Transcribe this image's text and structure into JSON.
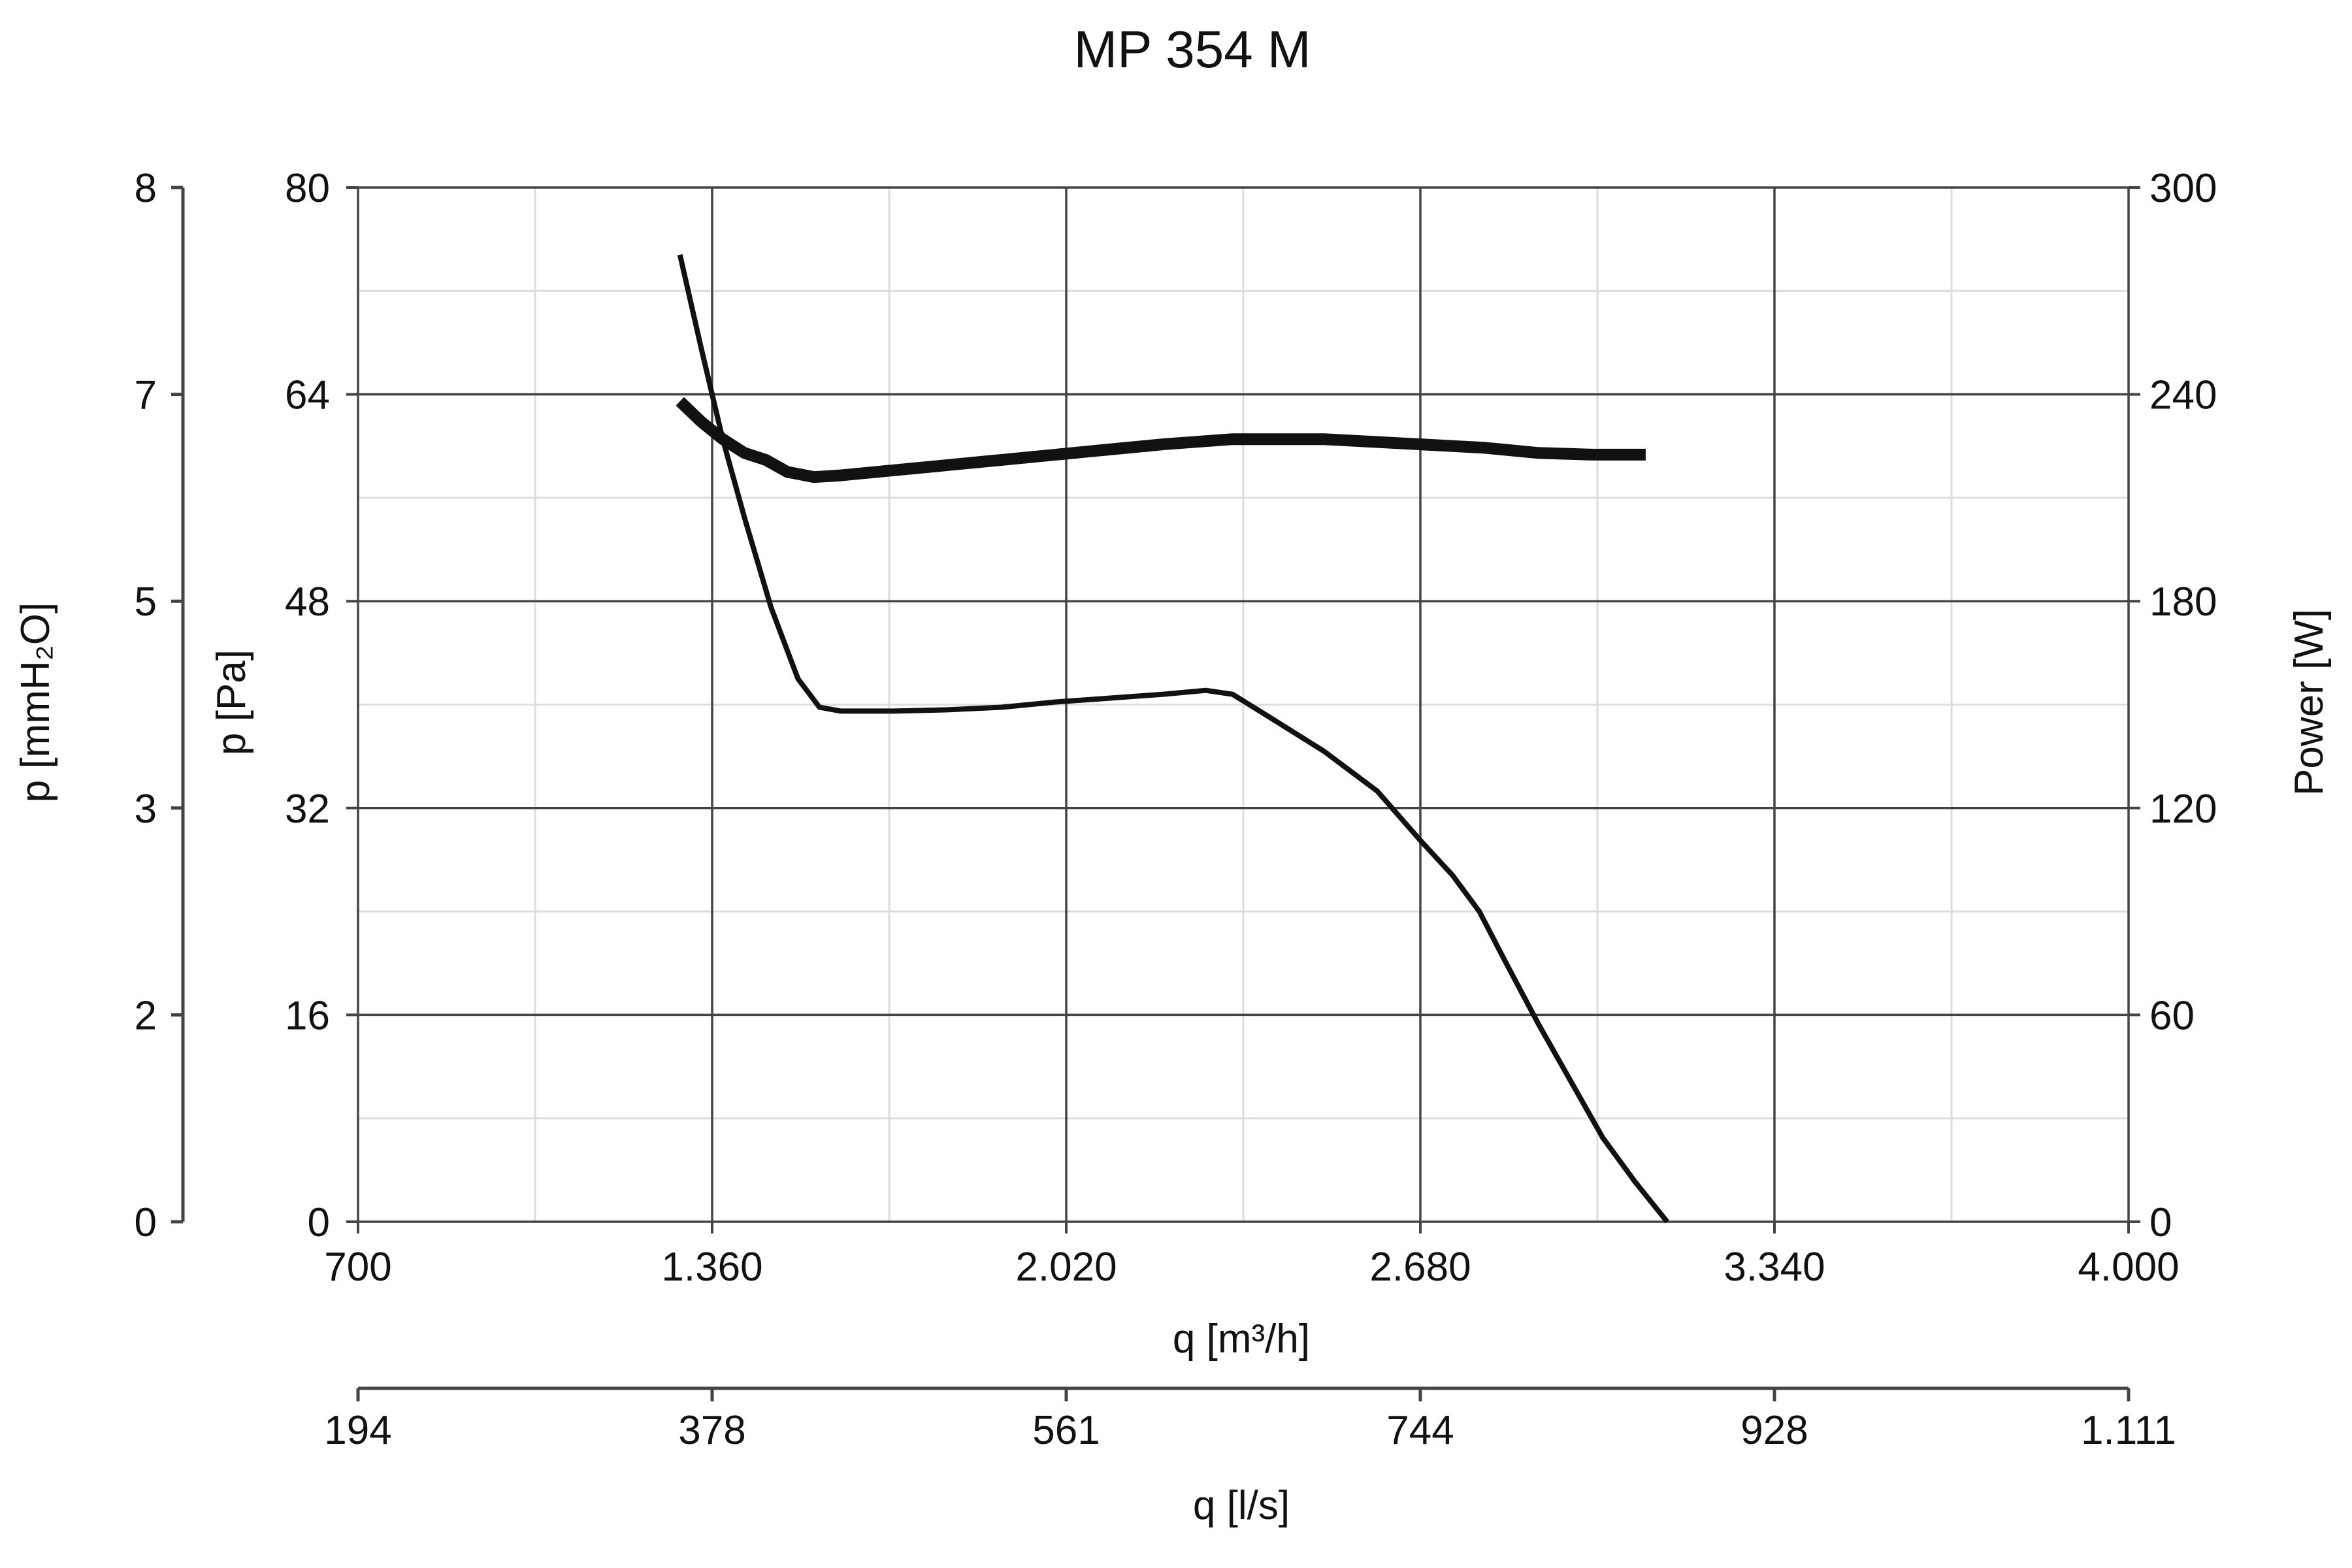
{
  "chart_data": {
    "type": "line",
    "title": "MP 354 M",
    "x_axis": {
      "label": "q [m³/h]",
      "range": [
        700,
        4000
      ],
      "ticks": [
        700,
        1360,
        2020,
        2680,
        3340,
        4000
      ],
      "tick_labels": [
        "700",
        "1.360",
        "2.020",
        "2.680",
        "3.340",
        "4.000"
      ]
    },
    "x2_axis": {
      "label": "q [l/s]",
      "tick_labels": [
        "194",
        "378",
        "561",
        "744",
        "928",
        "1.111"
      ]
    },
    "y_axis": {
      "label": "p [Pa]",
      "range": [
        0,
        80
      ],
      "ticks": [
        0,
        16,
        32,
        48,
        64,
        80
      ],
      "tick_labels": [
        "0",
        "16",
        "32",
        "48",
        "64",
        "80"
      ]
    },
    "y2_axis": {
      "label": "p [mmH₂O]",
      "tick_labels": [
        "0",
        "2",
        "3",
        "5",
        "7",
        "8"
      ]
    },
    "y_right_axis": {
      "label": "Power [W]",
      "range": [
        0,
        300
      ],
      "ticks": [
        0,
        60,
        120,
        180,
        240,
        300
      ],
      "tick_labels": [
        "0",
        "60",
        "120",
        "180",
        "240",
        "300"
      ]
    },
    "grid": true,
    "series": [
      {
        "axis": "left",
        "color": "#111111",
        "values": [
          [
            1300,
            74.8
          ],
          [
            1340,
            67.5
          ],
          [
            1380,
            60.5
          ],
          [
            1420,
            54.5
          ],
          [
            1470,
            47.5
          ],
          [
            1520,
            42
          ],
          [
            1560,
            39.8
          ],
          [
            1600,
            39.5
          ],
          [
            1700,
            39.5
          ],
          [
            1800,
            39.6
          ],
          [
            1900,
            39.8
          ],
          [
            2000,
            40.2
          ],
          [
            2100,
            40.5
          ],
          [
            2200,
            40.8
          ],
          [
            2280,
            41.1
          ],
          [
            2330,
            40.8
          ],
          [
            2400,
            39
          ],
          [
            2500,
            36.4
          ],
          [
            2600,
            33.3
          ],
          [
            2680,
            29.5
          ],
          [
            2740,
            26.8
          ],
          [
            2790,
            24
          ],
          [
            2840,
            20
          ],
          [
            2900,
            15.3
          ],
          [
            2960,
            10.9
          ],
          [
            3020,
            6.5
          ],
          [
            3080,
            3.1
          ],
          [
            3140,
            0
          ]
        ]
      },
      {
        "axis": "right",
        "color": "#111111",
        "values": [
          [
            1300,
            238
          ],
          [
            1340,
            232
          ],
          [
            1380,
            227
          ],
          [
            1420,
            223
          ],
          [
            1460,
            221
          ],
          [
            1500,
            217.5
          ],
          [
            1550,
            216
          ],
          [
            1600,
            216.5
          ],
          [
            1700,
            218
          ],
          [
            1800,
            219.5
          ],
          [
            1900,
            221
          ],
          [
            2000,
            222.5
          ],
          [
            2100,
            224
          ],
          [
            2200,
            225.5
          ],
          [
            2330,
            227
          ],
          [
            2500,
            227
          ],
          [
            2680,
            225.5
          ],
          [
            2800,
            224.5
          ],
          [
            2900,
            223
          ],
          [
            3000,
            222.5
          ],
          [
            3100,
            222.5
          ]
        ]
      }
    ]
  }
}
